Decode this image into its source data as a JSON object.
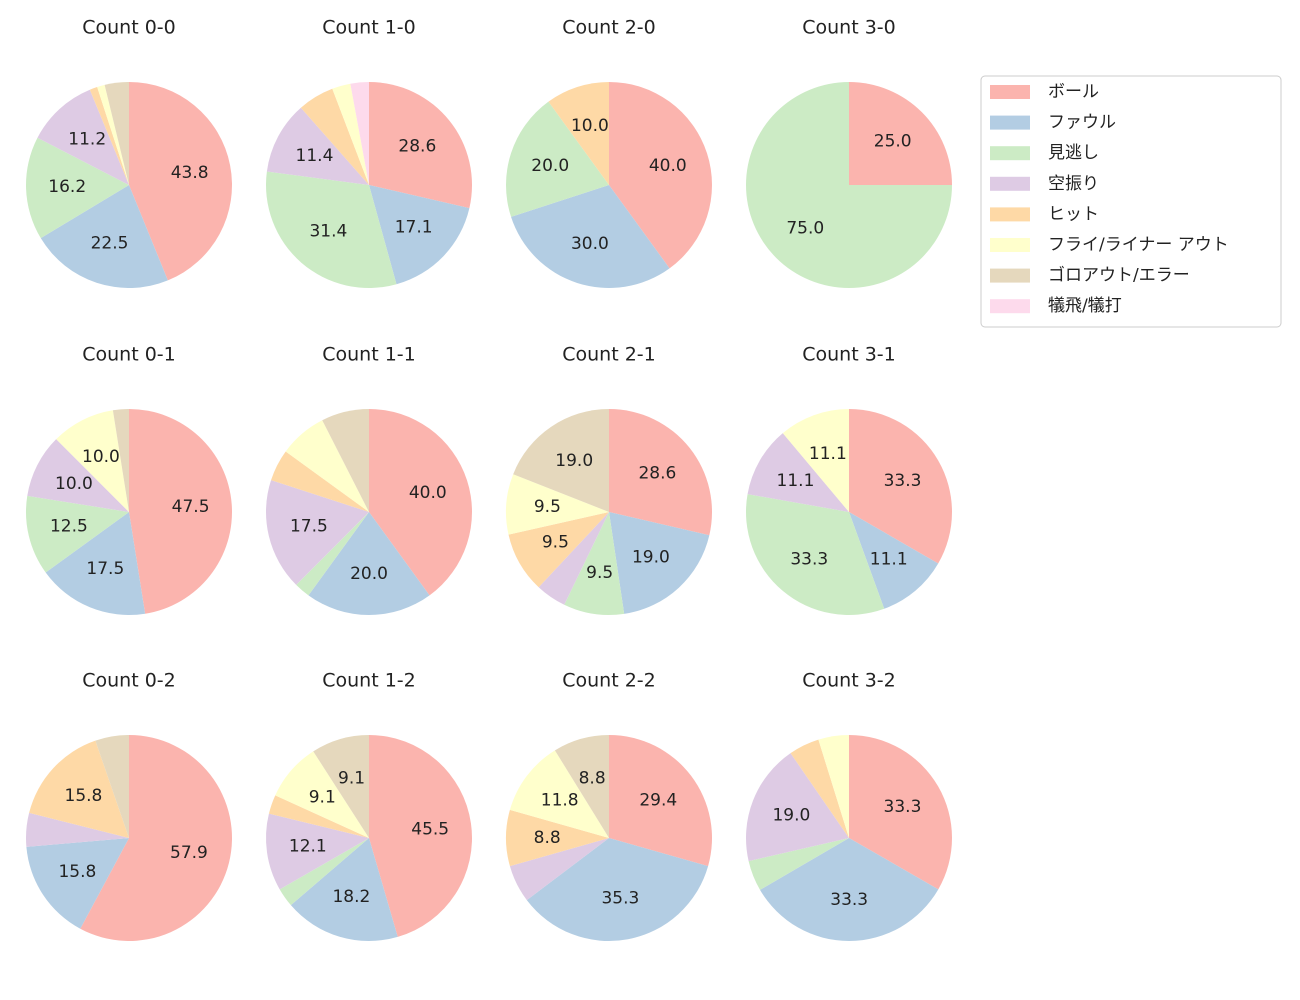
{
  "legend": {
    "categories": [
      "ボール",
      "ファウル",
      "見逃し",
      "空振り",
      "ヒット",
      "フライ/ライナー アウト",
      "ゴロアウト/エラー",
      "犠飛/犠打"
    ],
    "colors": [
      "#fbb4ae",
      "#b3cde3",
      "#ccebc5",
      "#decbe4",
      "#fed9a6",
      "#ffffcc",
      "#e5d8bd",
      "#fddaec"
    ],
    "position": "upper right"
  },
  "chart_data": [
    {
      "type": "pie",
      "title": "Count 0-0",
      "values": [
        43.8,
        22.5,
        16.2,
        11.2,
        1.2,
        1.2,
        3.8,
        0
      ],
      "value_labels": [
        "43.8",
        "22.5",
        "16.2",
        "11.2",
        null,
        null,
        null,
        null
      ]
    },
    {
      "type": "pie",
      "title": "Count 1-0",
      "values": [
        28.6,
        17.1,
        31.4,
        11.4,
        5.7,
        2.9,
        0,
        2.9
      ],
      "value_labels": [
        "28.6",
        "17.1",
        "31.4",
        "11.4",
        null,
        null,
        null,
        null
      ]
    },
    {
      "type": "pie",
      "title": "Count 2-0",
      "values": [
        40,
        30,
        20,
        0,
        10,
        0,
        0,
        0
      ],
      "value_labels": [
        "40.0",
        "30.0",
        "20.0",
        null,
        "10.0",
        null,
        null,
        null
      ]
    },
    {
      "type": "pie",
      "title": "Count 3-0",
      "values": [
        25,
        0,
        75,
        0,
        0,
        0,
        0,
        0
      ],
      "value_labels": [
        "25.0",
        null,
        "75.0",
        null,
        null,
        null,
        null,
        null
      ]
    },
    {
      "type": "pie",
      "title": "Count 0-1",
      "values": [
        47.5,
        17.5,
        12.5,
        10,
        0,
        10,
        2.5,
        0
      ],
      "value_labels": [
        "47.5",
        "17.5",
        "12.5",
        "10.0",
        null,
        "10.0",
        null,
        null
      ]
    },
    {
      "type": "pie",
      "title": "Count 1-1",
      "values": [
        40,
        20,
        2.5,
        17.5,
        5,
        7.5,
        7.5,
        0
      ],
      "value_labels": [
        "40.0",
        "20.0",
        null,
        "17.5",
        null,
        null,
        null,
        null
      ]
    },
    {
      "type": "pie",
      "title": "Count 2-1",
      "values": [
        28.6,
        19.0,
        9.5,
        4.8,
        9.5,
        9.5,
        19.0,
        0
      ],
      "value_labels": [
        "28.6",
        "19.0",
        "9.5",
        null,
        "9.5",
        "9.5",
        "19.0",
        null
      ]
    },
    {
      "type": "pie",
      "title": "Count 3-1",
      "values": [
        33.3,
        11.1,
        33.3,
        11.1,
        0,
        11.1,
        0,
        0
      ],
      "value_labels": [
        "33.3",
        "11.1",
        "33.3",
        "11.1",
        null,
        "11.1",
        null,
        null
      ]
    },
    {
      "type": "pie",
      "title": "Count 0-2",
      "values": [
        57.9,
        15.8,
        0,
        5.3,
        15.8,
        0,
        5.3,
        0
      ],
      "value_labels": [
        "57.9",
        "15.8",
        null,
        null,
        "15.8",
        null,
        null,
        null
      ]
    },
    {
      "type": "pie",
      "title": "Count 1-2",
      "values": [
        45.5,
        18.2,
        3.0,
        12.1,
        3.0,
        9.1,
        9.1,
        0
      ],
      "value_labels": [
        "45.5",
        "18.2",
        null,
        "12.1",
        null,
        "9.1",
        "9.1",
        null
      ]
    },
    {
      "type": "pie",
      "title": "Count 2-2",
      "values": [
        29.4,
        35.3,
        0,
        5.9,
        8.8,
        11.8,
        8.8,
        0
      ],
      "value_labels": [
        "29.4",
        "35.3",
        null,
        null,
        "8.8",
        "11.8",
        "8.8",
        null
      ]
    },
    {
      "type": "pie",
      "title": "Count 3-2",
      "values": [
        33.3,
        33.3,
        4.8,
        19.0,
        4.8,
        4.8,
        0,
        0
      ],
      "value_labels": [
        "33.3",
        "33.3",
        null,
        "19.0",
        null,
        null,
        null,
        null
      ]
    }
  ]
}
